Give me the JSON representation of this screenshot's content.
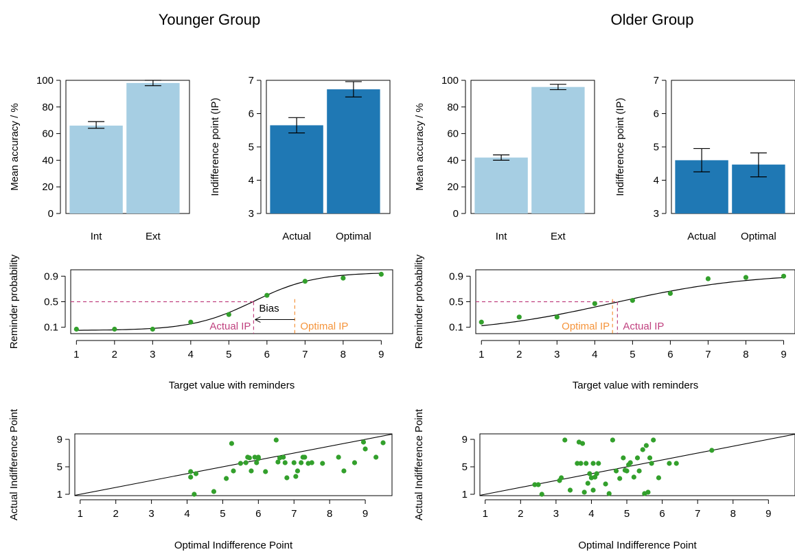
{
  "groups": [
    "Younger Group",
    "Older Group"
  ],
  "colors": {
    "bar_light": "#a6cee3",
    "bar_dark": "#1f78b4",
    "point": "#33a02c",
    "actual": "#c0417f",
    "optimal": "#f5943b"
  },
  "chart_data": [
    {
      "type": "bar",
      "group": "Younger Group",
      "categories": [
        "Int",
        "Ext"
      ],
      "values": [
        66,
        98
      ],
      "error": [
        [
          64,
          69
        ],
        [
          96,
          100
        ]
      ],
      "ylabel": "Mean accuracy / %",
      "ylim": [
        0,
        100
      ],
      "yticks": [
        0,
        20,
        40,
        60,
        80,
        100
      ],
      "color": "#a6cee3"
    },
    {
      "type": "bar",
      "group": "Younger Group",
      "categories": [
        "Actual",
        "Optimal"
      ],
      "values": [
        5.65,
        6.73
      ],
      "error": [
        [
          5.42,
          5.88
        ],
        [
          6.5,
          6.96
        ]
      ],
      "ylabel": "Indifference point (IP)",
      "ylim": [
        3,
        7
      ],
      "yticks": [
        3,
        4,
        5,
        6,
        7
      ],
      "color": "#1f78b4"
    },
    {
      "type": "bar",
      "group": "Older Group",
      "categories": [
        "Int",
        "Ext"
      ],
      "values": [
        42,
        95
      ],
      "error": [
        [
          40,
          44
        ],
        [
          93,
          97
        ]
      ],
      "ylabel": "Mean accuracy / %",
      "ylim": [
        0,
        100
      ],
      "yticks": [
        0,
        20,
        40,
        60,
        80,
        100
      ],
      "color": "#a6cee3"
    },
    {
      "type": "bar",
      "group": "Older Group",
      "categories": [
        "Actual",
        "Optimal"
      ],
      "values": [
        4.6,
        4.47
      ],
      "error": [
        [
          4.25,
          4.95
        ],
        [
          4.1,
          4.82
        ]
      ],
      "ylabel": "Indifference point (IP)",
      "ylim": [
        3,
        7
      ],
      "yticks": [
        3,
        4,
        5,
        6,
        7
      ],
      "color": "#1f78b4"
    },
    {
      "type": "scatter",
      "group": "Younger Group",
      "x": [
        1,
        2,
        3,
        4,
        5,
        6,
        7,
        8,
        9
      ],
      "y": [
        0.07,
        0.07,
        0.07,
        0.18,
        0.3,
        0.6,
        0.82,
        0.87,
        0.93
      ],
      "xlabel": "Target value with reminders",
      "ylabel": "Reminder probability",
      "xlim": [
        0.85,
        9.3
      ],
      "ylim": [
        0,
        1
      ],
      "xticks": [
        1,
        2,
        3,
        4,
        5,
        6,
        7,
        8,
        9
      ],
      "yticks": [
        0.1,
        0.5,
        0.9
      ],
      "fit": {
        "midpoint": 5.65,
        "slope": 1.25,
        "lower": 0.05,
        "upper": 0.96
      },
      "reference_y": 0.5,
      "actual_ip": 5.65,
      "optimal_ip": 6.73,
      "labels": {
        "actual": "Actual IP",
        "optimal": "Optimal IP",
        "bias": "Bias"
      }
    },
    {
      "type": "scatter",
      "group": "Older Group",
      "x": [
        1,
        2,
        3,
        4,
        5,
        6,
        7,
        8,
        9
      ],
      "y": [
        0.18,
        0.26,
        0.26,
        0.47,
        0.52,
        0.63,
        0.86,
        0.88,
        0.9
      ],
      "xlabel": "Target value with reminders",
      "ylabel": "Reminder probability",
      "xlim": [
        0.85,
        9.3
      ],
      "ylim": [
        0,
        1
      ],
      "xticks": [
        1,
        2,
        3,
        4,
        5,
        6,
        7,
        8,
        9
      ],
      "yticks": [
        0.1,
        0.5,
        0.9
      ],
      "fit": {
        "midpoint": 4.45,
        "slope": 0.55,
        "lower": 0.0,
        "upper": 0.95
      },
      "reference_y": 0.5,
      "actual_ip": 4.6,
      "optimal_ip": 4.47,
      "labels": {
        "actual": "Actual IP",
        "optimal": "Optimal IP"
      }
    },
    {
      "type": "scatter",
      "group": "Younger Group",
      "xlabel": "Optimal Indifference Point",
      "ylabel": "Actual Indifference Point",
      "xlim": [
        0.85,
        9.75
      ],
      "ylim": [
        0.8,
        9.8
      ],
      "xticks": [
        1,
        2,
        3,
        4,
        5,
        6,
        7,
        8,
        9
      ],
      "yticks": [
        1,
        5,
        9
      ],
      "identity_line": true,
      "x": [
        4.1,
        4.1,
        4.25,
        4.2,
        4.75,
        5.1,
        5.25,
        5.3,
        5.5,
        5.65,
        5.7,
        5.75,
        5.8,
        5.9,
        5.95,
        6.0,
        6.0,
        6.2,
        6.5,
        6.55,
        6.6,
        6.7,
        6.75,
        6.8,
        7.0,
        7.05,
        7.1,
        7.2,
        7.25,
        7.3,
        7.4,
        7.5,
        7.8,
        8.25,
        8.4,
        8.7,
        8.95,
        9.0,
        9.3,
        9.5
      ],
      "y": [
        4.3,
        3.5,
        4.0,
        1.0,
        1.4,
        3.3,
        8.4,
        4.4,
        5.5,
        5.6,
        6.4,
        6.3,
        4.4,
        6.4,
        5.6,
        6.2,
        6.4,
        4.3,
        8.9,
        5.7,
        6.3,
        6.4,
        5.6,
        3.4,
        5.6,
        3.6,
        4.4,
        5.6,
        6.4,
        6.4,
        5.5,
        5.6,
        5.5,
        6.4,
        4.4,
        5.6,
        8.6,
        7.6,
        6.4,
        8.5
      ]
    },
    {
      "type": "scatter",
      "group": "Older Group",
      "xlabel": "Optimal Indifference Point",
      "ylabel": "Actual Indifference Point",
      "xlim": [
        0.85,
        9.75
      ],
      "ylim": [
        0.8,
        9.8
      ],
      "xticks": [
        1,
        2,
        3,
        4,
        5,
        6,
        7,
        8,
        9
      ],
      "yticks": [
        1,
        5,
        9
      ],
      "identity_line": true,
      "x": [
        2.4,
        2.5,
        2.6,
        3.1,
        3.15,
        3.25,
        3.4,
        3.6,
        3.65,
        3.7,
        3.75,
        3.8,
        3.85,
        3.9,
        3.95,
        4.0,
        4.05,
        4.05,
        4.1,
        4.15,
        4.2,
        4.4,
        4.5,
        4.6,
        4.7,
        4.8,
        4.9,
        4.95,
        5.0,
        5.05,
        5.1,
        5.2,
        5.3,
        5.35,
        5.45,
        5.5,
        5.55,
        5.6,
        5.65,
        5.7,
        5.75,
        5.9,
        6.2,
        6.4,
        7.4
      ],
      "y": [
        2.4,
        2.4,
        1.0,
        3.0,
        3.4,
        8.9,
        1.6,
        5.5,
        8.6,
        5.5,
        8.4,
        1.3,
        5.5,
        2.6,
        4.0,
        3.4,
        5.5,
        1.6,
        3.5,
        4.0,
        5.5,
        2.5,
        1.1,
        8.9,
        4.4,
        3.3,
        6.3,
        4.5,
        4.4,
        5.3,
        5.6,
        3.5,
        6.3,
        4.4,
        7.5,
        1.1,
        8.1,
        1.3,
        6.3,
        5.5,
        8.9,
        3.4,
        5.5,
        5.5,
        7.4
      ]
    }
  ]
}
